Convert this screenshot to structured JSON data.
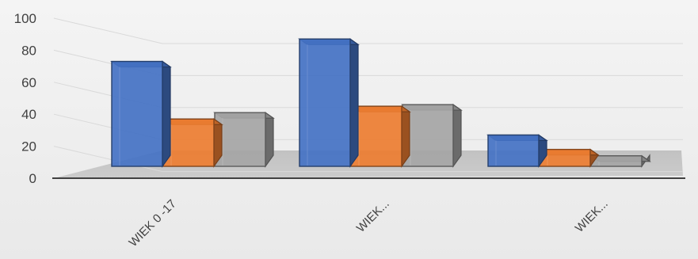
{
  "chart_data": {
    "type": "bar",
    "three_d": true,
    "categories": [
      "WIEK 0 -17",
      "WIEK...",
      "WIEK..."
    ],
    "series": [
      {
        "color": "#4472c4",
        "values": [
          73,
          87,
          27
        ]
      },
      {
        "color": "#ed7d31",
        "values": [
          37,
          45,
          18
        ]
      },
      {
        "color": "#a5a5a5",
        "values": [
          41,
          46,
          14
        ]
      }
    ],
    "yticks": [
      0,
      20,
      40,
      60,
      80,
      100
    ],
    "ylim": [
      0,
      100
    ],
    "grid": true,
    "legend": "none",
    "title": "",
    "xlabel": "",
    "ylabel": ""
  }
}
